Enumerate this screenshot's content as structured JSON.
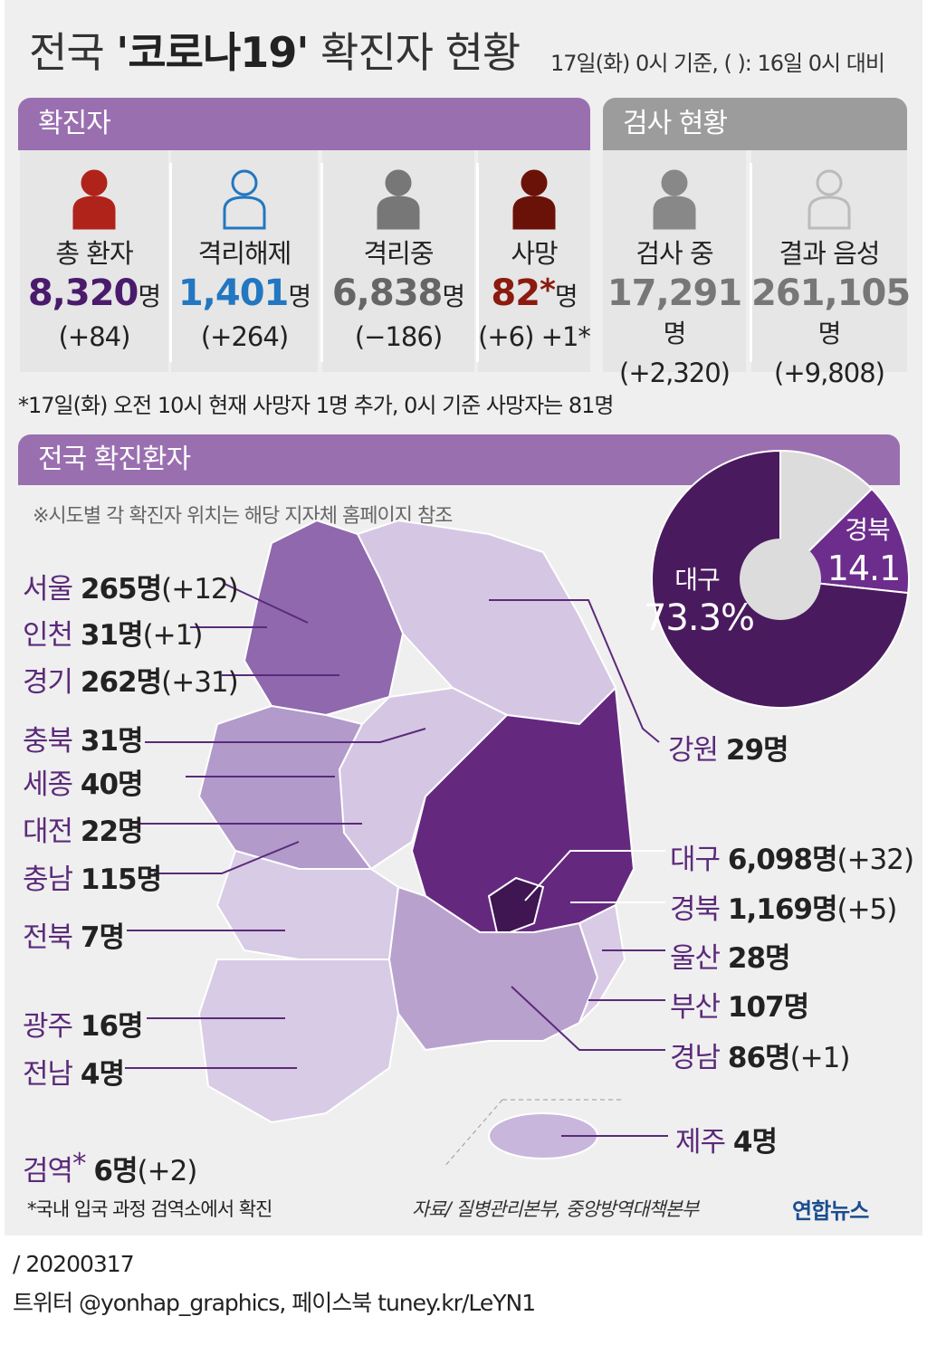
{
  "header": {
    "title_prefix": "전국",
    "title_bold": "'코로나19'",
    "title_suffix": "확진자 현황",
    "subtitle": "17일(화) 0시 기준, (  ): 16일 0시 대비"
  },
  "confirmed": {
    "heading": "확진자",
    "items": [
      {
        "label": "총 환자",
        "value": "8,320",
        "unit": "명",
        "change": "(+84)"
      },
      {
        "label": "격리해제",
        "value": "1,401",
        "unit": "명",
        "change": "(+264)"
      },
      {
        "label": "격리중",
        "value": "6,838",
        "unit": "명",
        "change": "(−186)"
      },
      {
        "label": "사망",
        "value": "82",
        "marker": "*",
        "unit": "명",
        "change": "(+6) +1*"
      }
    ]
  },
  "tests": {
    "heading": "검사 현황",
    "items": [
      {
        "label": "검사 중",
        "value": "17,291",
        "unit": "명",
        "change": "(+2,320)"
      },
      {
        "label": "결과 음성",
        "value": "261,105",
        "unit": "명",
        "change": "(+9,808)"
      }
    ]
  },
  "note": "*17일(화) 오전 10시 현재 사망자 1명 추가, 0시 기준 사망자는 81명",
  "section": {
    "heading": "전국 확진환자",
    "map_note": "※시도별 각 확진자 위치는 해당 지자체 홈페이지 참조"
  },
  "regions": [
    {
      "name": "서울",
      "count": "265명",
      "change": "(+12)"
    },
    {
      "name": "인천",
      "count": "31명",
      "change": "(+1)"
    },
    {
      "name": "경기",
      "count": "262명",
      "change": "(+31)"
    },
    {
      "name": "충북",
      "count": "31명"
    },
    {
      "name": "세종",
      "count": "40명"
    },
    {
      "name": "대전",
      "count": "22명"
    },
    {
      "name": "충남",
      "count": "115명"
    },
    {
      "name": "전북",
      "count": "7명"
    },
    {
      "name": "광주",
      "count": "16명"
    },
    {
      "name": "전남",
      "count": "4명"
    },
    {
      "name": "검역",
      "marker": "*",
      "count": "6명",
      "change": "(+2)"
    },
    {
      "name": "강원",
      "count": "29명"
    },
    {
      "name": "대구",
      "count": "6,098명",
      "change": "(+32)"
    },
    {
      "name": "경북",
      "count": "1,169명",
      "change": "(+5)"
    },
    {
      "name": "울산",
      "count": "28명"
    },
    {
      "name": "부산",
      "count": "107명"
    },
    {
      "name": "경남",
      "count": "86명",
      "change": "(+1)"
    },
    {
      "name": "제주",
      "count": "4명"
    }
  ],
  "chart_data": {
    "type": "pie",
    "categories": [
      "대구",
      "경북",
      null
    ],
    "values": [
      73.3,
      14.1,
      12.6
    ],
    "value_labels": [
      "73.3%",
      "14.1",
      null
    ],
    "colors": [
      "#4a1a5e",
      "#6c2d8c",
      "#dcdcdc"
    ],
    "hole_color": "#dcdcdc"
  },
  "footnote": "*국내 입국 과정 검역소에서 확진",
  "source": "자료/ 질병관리본부, 중앙방역대책본부",
  "logo": "연합뉴스",
  "footer": {
    "date": "/ 20200317",
    "social": "트위터 @yonhap_graphics, 페이스북 tuney.kr/LeYN1"
  }
}
